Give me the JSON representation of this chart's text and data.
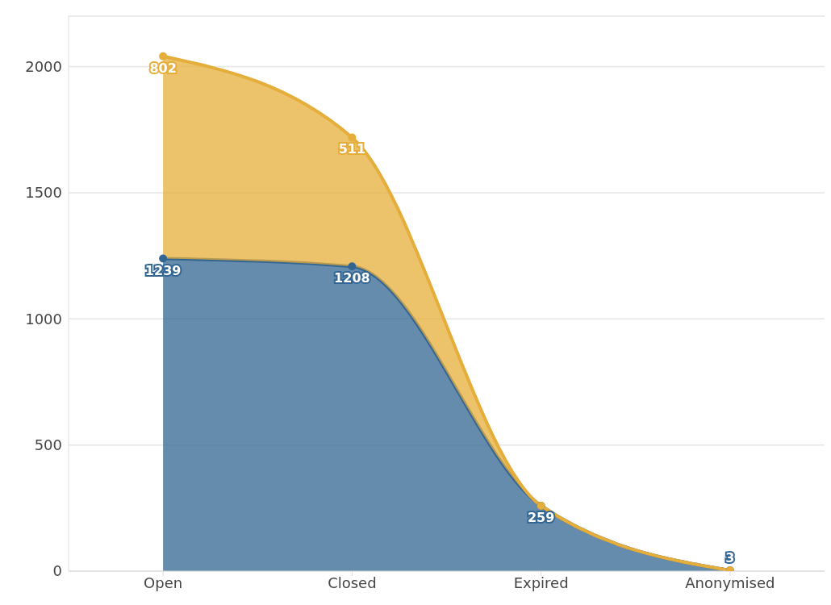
{
  "chart_data": {
    "type": "area",
    "stacked": true,
    "categories": [
      "Open",
      "Closed",
      "Expired",
      "Anonymised"
    ],
    "series": [
      {
        "color": "#336592",
        "values": [
          1239,
          1208,
          259,
          3
        ],
        "value_labels": [
          "1239",
          "1208",
          "259",
          "3"
        ]
      },
      {
        "color": "#e5ad3a",
        "values": [
          802,
          511,
          0,
          0
        ],
        "value_labels": [
          "802",
          "511",
          null,
          null
        ]
      }
    ],
    "ylim": [
      0,
      2200
    ],
    "yticks": [
      0,
      500,
      1000,
      1500,
      2000
    ],
    "grid": "y",
    "marker": "circle"
  }
}
